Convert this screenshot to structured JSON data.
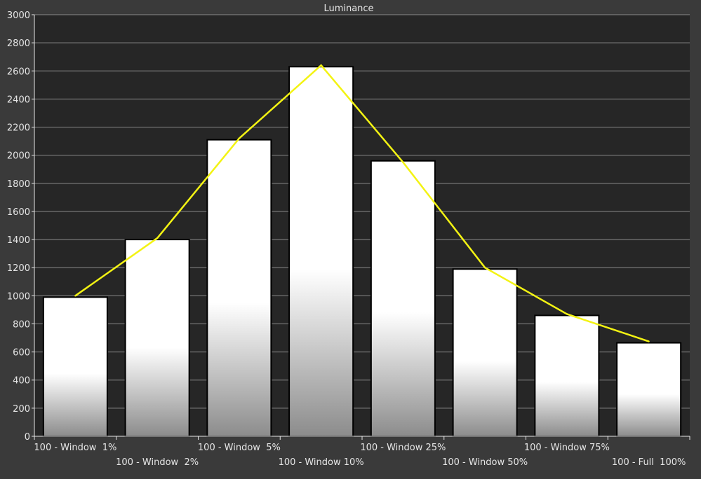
{
  "chart_data": {
    "type": "bar",
    "title": "Luminance",
    "xlabel": "",
    "ylabel": "",
    "ylim": [
      0,
      3000
    ],
    "yticks": [
      0,
      200,
      400,
      600,
      800,
      1000,
      1200,
      1400,
      1600,
      1800,
      2000,
      2200,
      2400,
      2600,
      2800,
      3000
    ],
    "grid": true,
    "categories": [
      "100 - Window  1%",
      "100 - Window  2%",
      "100 - Window  5%",
      "100 - Window 10%",
      "100 - Window 25%",
      "100 - Window 50%",
      "100 - Window 75%",
      "100 - Full  100%"
    ],
    "series": [
      {
        "values": [
          990,
          1400,
          2110,
          2630,
          1960,
          1190,
          860,
          665
        ]
      },
      {
        "values": [
          1000,
          1410,
          2120,
          2640,
          1950,
          1200,
          870,
          675
        ]
      }
    ],
    "colors": {
      "background": "#262626",
      "frame": "#3a3a3a",
      "grid": "#8a8a8a",
      "bar_fill_top": "#ffffff",
      "bar_fill_bottom": "#8c8c8c",
      "bar_stroke": "#000000",
      "line": "#f3f313",
      "text": "#e6e6e6"
    }
  }
}
